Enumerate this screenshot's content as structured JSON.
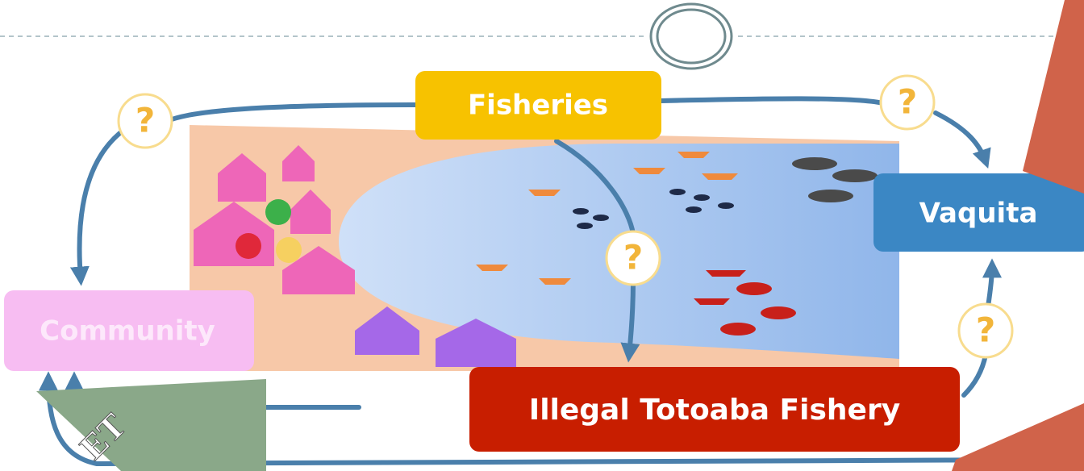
{
  "nodes": [
    {
      "label": "Fisheries"
    },
    {
      "label": "Vaquita"
    },
    {
      "label": "Community"
    },
    {
      "label": "Illegal Totoaba Fishery"
    }
  ],
  "markers": [
    "?",
    "?",
    "?",
    "?"
  ],
  "slide_text": "ET"
}
